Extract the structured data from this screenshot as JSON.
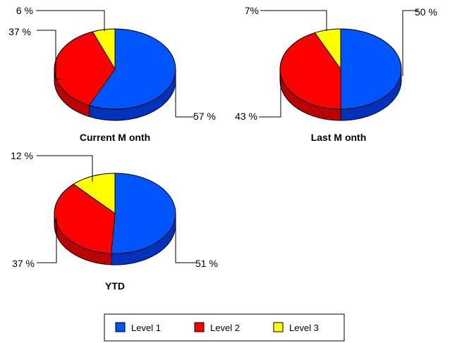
{
  "chart_data": {
    "type": "pie",
    "style": "3d",
    "series_colors": [
      "#0055FF",
      "#FF0000",
      "#FFFF00"
    ],
    "legend": {
      "placement": "bottom",
      "entries": [
        "Level  1",
        "Level  2",
        "Level  3"
      ]
    },
    "charts": [
      {
        "title": "Current M onth",
        "values": [
          57,
          37,
          6
        ],
        "labels": [
          "57 %",
          "37 %",
          "6 %"
        ]
      },
      {
        "title": "Last M onth",
        "values": [
          50,
          43,
          7
        ],
        "labels": [
          "50 %",
          "43 %",
          "7%"
        ]
      },
      {
        "title": "YTD",
        "values": [
          51,
          37,
          12
        ],
        "labels": [
          "51 %",
          "37 %",
          "12 %"
        ]
      }
    ]
  }
}
